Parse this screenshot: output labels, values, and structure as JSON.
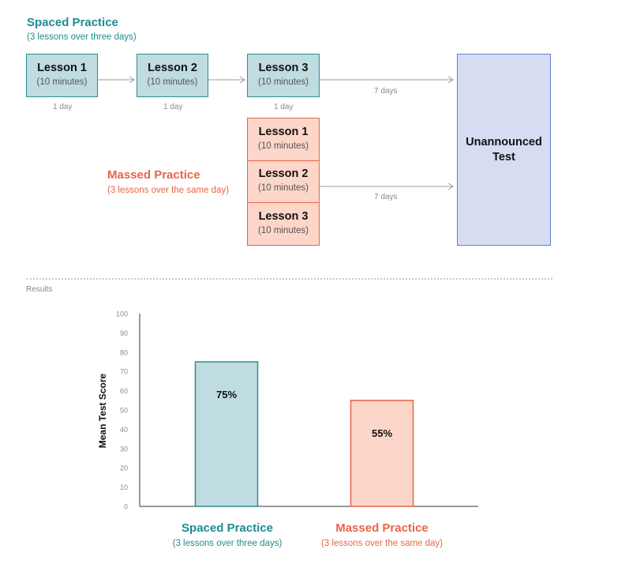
{
  "spaced": {
    "title": "Spaced Practice",
    "subtitle": "(3 lessons over three days)",
    "lessons": [
      {
        "name": "Lesson 1",
        "duration": "(10 minutes)"
      },
      {
        "name": "Lesson 2",
        "duration": "(10 minutes)"
      },
      {
        "name": "Lesson 3",
        "duration": "(10 minutes)"
      }
    ],
    "gaps": [
      "1 day",
      "1 day",
      "1 day"
    ],
    "to_test": "7 days"
  },
  "massed": {
    "title": "Massed Practice",
    "subtitle": "(3 lessons over the same day)",
    "lessons": [
      {
        "name": "Lesson 1",
        "duration": "(10 minutes)"
      },
      {
        "name": "Lesson 2",
        "duration": "(10 minutes)"
      },
      {
        "name": "Lesson 3",
        "duration": "(10 minutes)"
      }
    ],
    "to_test": "7 days"
  },
  "test": {
    "line1": "Unannounced",
    "line2": "Test"
  },
  "results_label": "Results",
  "colors": {
    "teal": "#1f8b93",
    "red": "#e8654a",
    "teal_fill": "#bfdce0",
    "red_fill": "#fcd6c8",
    "blue_fill": "#d6ddf3"
  },
  "chart_data": {
    "type": "bar",
    "categories": [
      "Spaced Practice",
      "Massed Practice"
    ],
    "category_subtitles": [
      "(3 lessons over three days)",
      "(3 lessons over the same day)"
    ],
    "values": [
      75,
      55
    ],
    "value_labels": [
      "75%",
      "55%"
    ],
    "ylabel": "Mean Test Score",
    "ylim": [
      0,
      100
    ],
    "yticks": [
      0,
      10,
      20,
      30,
      40,
      50,
      60,
      70,
      80,
      90,
      100
    ],
    "grid": false
  }
}
